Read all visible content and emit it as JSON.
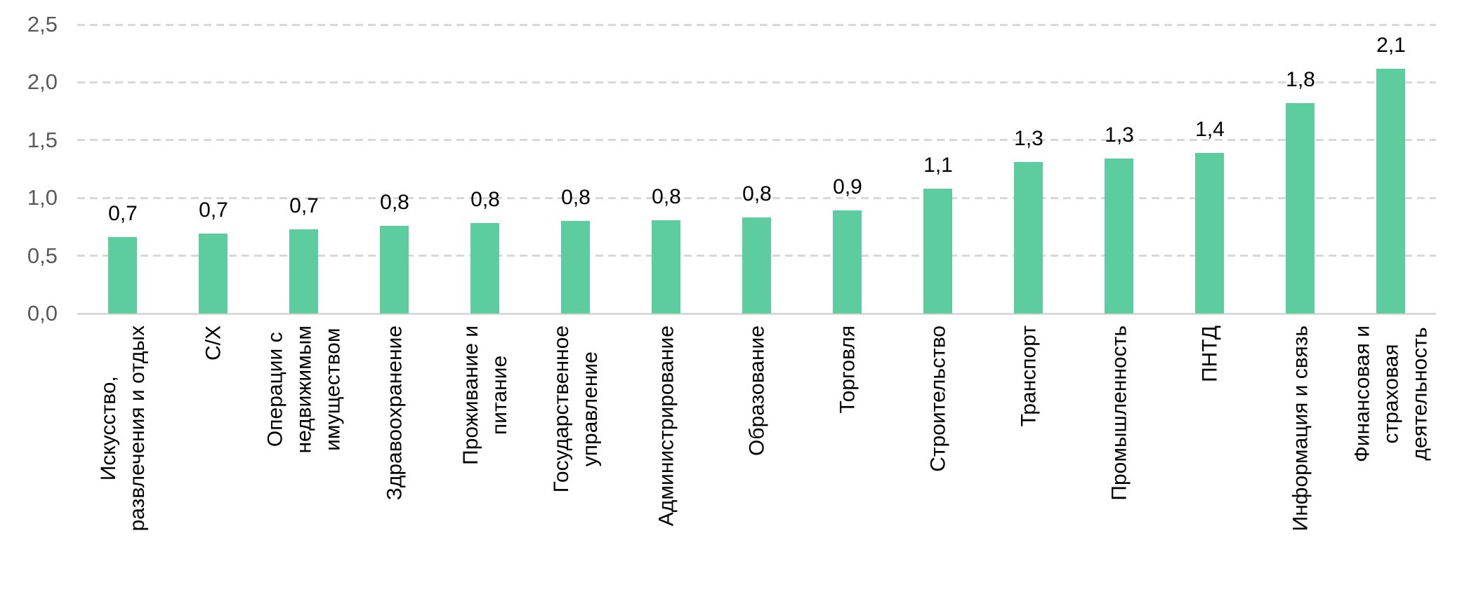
{
  "chart_data": {
    "type": "bar",
    "title": "",
    "xlabel": "",
    "ylabel": "",
    "legend": "none",
    "grid": "horizontal dashed",
    "ylim": [
      0,
      2.5
    ],
    "yticks": [
      0,
      0.5,
      1,
      1.5,
      2,
      2.5
    ],
    "ytick_labels": [
      "0,0",
      "0,5",
      "1,0",
      "1,5",
      "2,0",
      "2,5"
    ],
    "categories": [
      "Искусство, развлечения и отдых",
      "С/Х",
      "Операции с недвижимым имуществом",
      "Здравоохранение",
      "Проживание и питание",
      "Государственное управление",
      "Администрирование",
      "Образование",
      "Торговля",
      "Строительство",
      "Транспорт",
      "Промышленность",
      "ПНТД",
      "Информация и связь",
      "Финансовая и страховая деятельность"
    ],
    "category_label_lines": [
      [
        "Искусство,",
        "развлечения и отдых"
      ],
      [
        "С/Х"
      ],
      [
        "Операции с",
        "недвижимым",
        "имуществом"
      ],
      [
        "Здравоохранение"
      ],
      [
        "Проживание и",
        "питание"
      ],
      [
        "Государственное",
        "управление"
      ],
      [
        "Администрирование"
      ],
      [
        "Образование"
      ],
      [
        "Торговля"
      ],
      [
        "Строительство"
      ],
      [
        "Транспорт"
      ],
      [
        "Промышленность"
      ],
      [
        "ПНТД"
      ],
      [
        "Информация и связь"
      ],
      [
        "Финансовая и",
        "страховая",
        "деятельность"
      ]
    ],
    "values": [
      0.7,
      0.7,
      0.7,
      0.8,
      0.8,
      0.8,
      0.8,
      0.8,
      0.9,
      1.1,
      1.3,
      1.3,
      1.4,
      1.8,
      2.1
    ],
    "value_labels": [
      "0,7",
      "0,7",
      "0,7",
      "0,8",
      "0,8",
      "0,8",
      "0,8",
      "0,8",
      "0,9",
      "1,1",
      "1,3",
      "1,3",
      "1,4",
      "1,8",
      "2,1"
    ],
    "values_precise": [
      0.66,
      0.69,
      0.73,
      0.76,
      0.78,
      0.8,
      0.81,
      0.83,
      0.89,
      1.08,
      1.31,
      1.34,
      1.39,
      1.82,
      2.12
    ],
    "colors": {
      "bar": "#5DCDA0",
      "value_label": "#000000",
      "category_label": "#000000",
      "ytick_label": "#595959",
      "gridline": "#D8D8D8",
      "axis_line": "#D9D9D9",
      "background": "#FFFFFF"
    }
  }
}
